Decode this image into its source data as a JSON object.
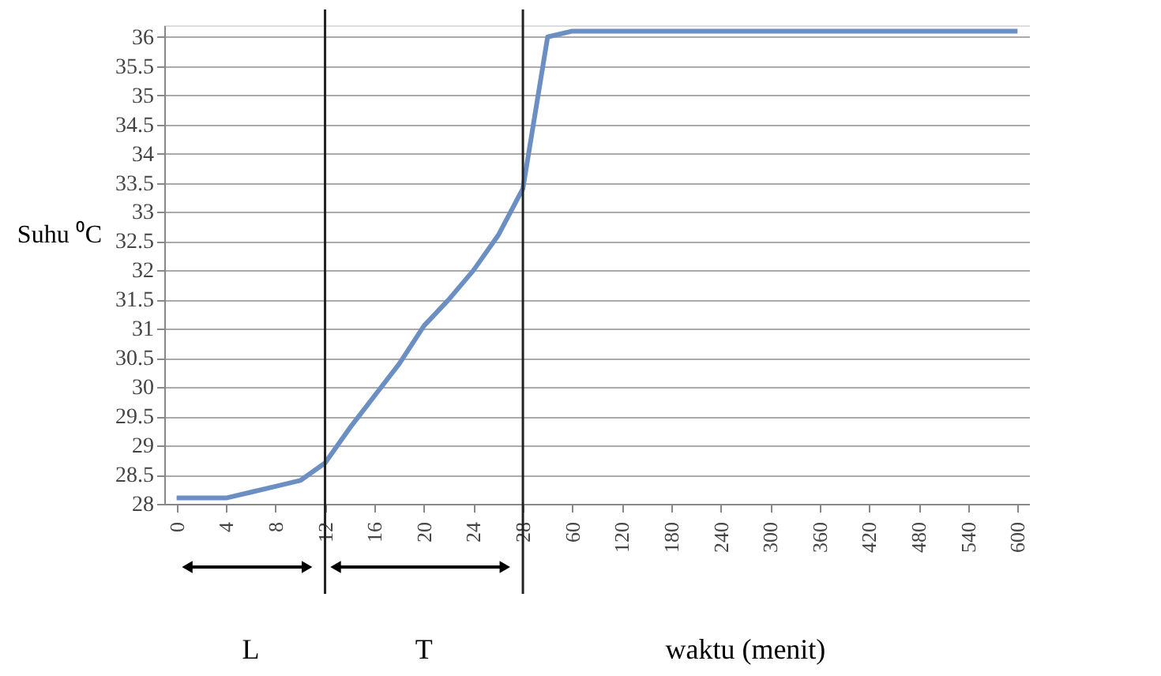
{
  "chart_data": {
    "type": "line",
    "xlabel": "waktu  (menit)",
    "ylabel": "Suhu ⁰C",
    "categories": [
      "0",
      null,
      "4",
      null,
      "8",
      null,
      "12",
      null,
      "16",
      null,
      "20",
      null,
      "24",
      null,
      "28",
      null,
      "60",
      null,
      "120",
      null,
      "180",
      null,
      "240",
      null,
      "300",
      null,
      "360",
      null,
      "420",
      null,
      "480",
      null,
      "540",
      null,
      "600"
    ],
    "series": [
      {
        "color": "#6b8fc2",
        "values": [
          28.1,
          28.1,
          28.1,
          28.2,
          28.3,
          28.4,
          28.7,
          29.3,
          29.85,
          30.4,
          31.05,
          31.5,
          32.0,
          32.6,
          33.4,
          36.0,
          36.1,
          36.1,
          36.1,
          36.1,
          36.1,
          36.1,
          36.1,
          36.1,
          36.1,
          36.1,
          36.1,
          36.1,
          36.1,
          36.1,
          36.1,
          36.1,
          36.1,
          36.1,
          36.1
        ]
      }
    ],
    "ylim": [
      28,
      36.2
    ],
    "yticks": [
      28,
      28.5,
      29,
      29.5,
      30,
      30.5,
      31,
      31.5,
      32,
      32.5,
      33,
      33.5,
      34,
      34.5,
      35,
      35.5,
      36
    ],
    "grid": "y",
    "marker": "none",
    "line_style": "solid",
    "ref_lines": [
      {
        "axis": "x",
        "value": "12"
      },
      {
        "axis": "x",
        "value": "28"
      }
    ],
    "annotations": [
      "L",
      "T"
    ]
  }
}
